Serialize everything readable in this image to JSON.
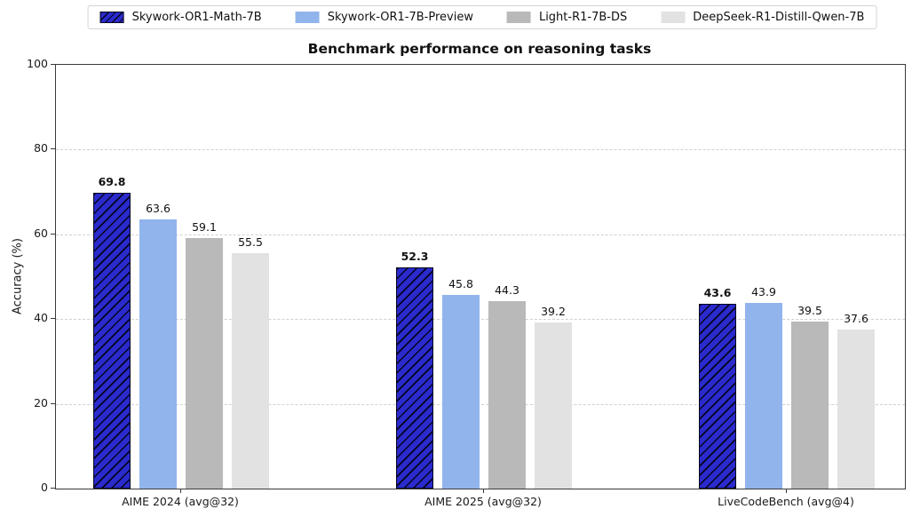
{
  "chart_data": {
    "type": "bar",
    "title": "Benchmark performance on reasoning tasks",
    "ylabel": "Accuracy (%)",
    "ylim": [
      0,
      100
    ],
    "yticks": [
      0,
      20,
      40,
      60,
      80,
      100
    ],
    "grid": "dashed-horizontal",
    "legend_position": "top-center-outside",
    "categories": [
      "AIME 2024 (avg@32)",
      "AIME 2025 (avg@32)",
      "LiveCodeBench (avg@4)"
    ],
    "series": [
      {
        "name": "Skywork-OR1-Math-7B",
        "color": "#2a2acd",
        "hatch": "/",
        "bold_value_labels": true,
        "values": [
          69.8,
          52.3,
          43.6
        ]
      },
      {
        "name": "Skywork-OR1-7B-Preview",
        "color": "#92b4ec",
        "hatch": null,
        "bold_value_labels": false,
        "values": [
          63.6,
          45.8,
          43.9
        ]
      },
      {
        "name": "Light-R1-7B-DS",
        "color": "#b9b9b9",
        "hatch": null,
        "bold_value_labels": false,
        "values": [
          59.1,
          44.3,
          39.5
        ]
      },
      {
        "name": "DeepSeek-R1-Distill-Qwen-7B",
        "color": "#e2e2e2",
        "hatch": null,
        "bold_value_labels": false,
        "values": [
          55.5,
          39.2,
          37.6
        ]
      }
    ]
  }
}
